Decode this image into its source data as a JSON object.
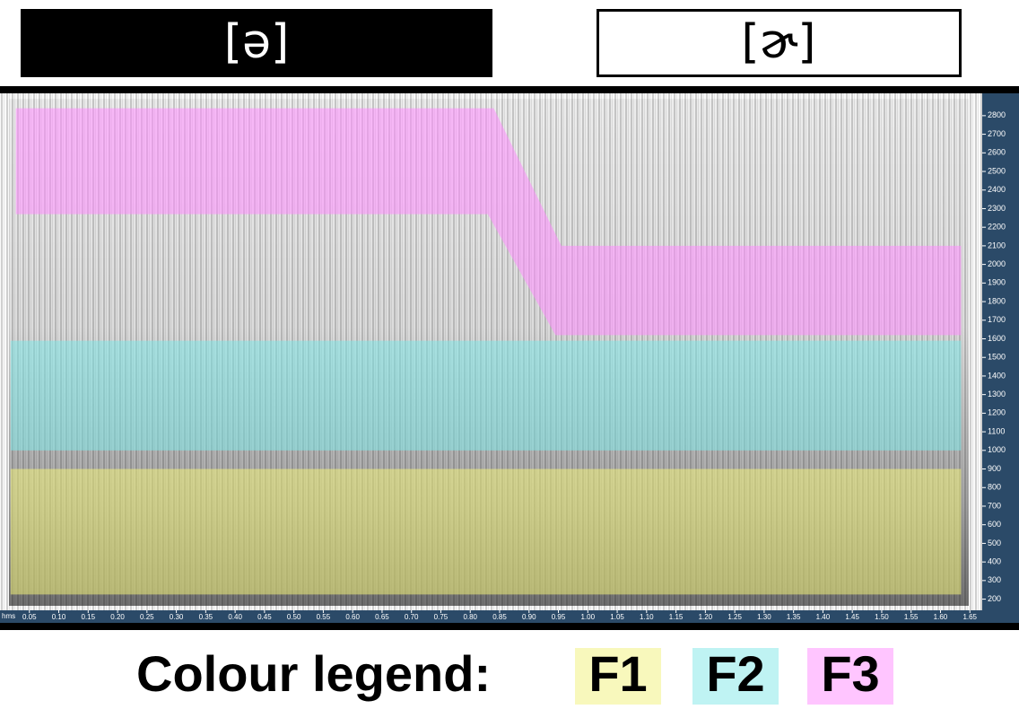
{
  "chart_data": {
    "type": "spectrogram",
    "segments": [
      "[ə]",
      "[ɚ]"
    ],
    "legend_title": "Colour legend:",
    "x_unit": "hms",
    "xlim": [
      0,
      1.671
    ],
    "ylim": [
      140,
      2920
    ],
    "yticks": [
      200,
      300,
      400,
      500,
      600,
      700,
      800,
      900,
      1000,
      1100,
      1200,
      1300,
      1400,
      1500,
      1600,
      1700,
      1800,
      1900,
      2000,
      2100,
      2200,
      2300,
      2400,
      2500,
      2600,
      2700,
      2800
    ],
    "xticks": [
      {
        "value": 0.05,
        "label": "0.05"
      },
      {
        "value": 0.1,
        "label": "0.10"
      },
      0.15,
      {
        "value": 0.2,
        "label": "0.20"
      },
      0.25,
      {
        "value": 0.3,
        "label": "0.30"
      },
      0.35,
      {
        "value": 0.4,
        "label": "0.40"
      },
      0.45,
      {
        "value": 0.5,
        "label": "0.50"
      },
      0.55,
      {
        "value": 0.6,
        "label": "0.60"
      },
      0.65,
      {
        "value": 0.7,
        "label": "0.70"
      },
      0.75,
      {
        "value": 0.8,
        "label": "0.80"
      },
      0.85,
      {
        "value": 0.9,
        "label": "0.90"
      },
      0.95,
      {
        "value": 1,
        "label": "1.00"
      },
      1.05,
      {
        "value": 1.1,
        "label": "1.10"
      },
      1.15,
      {
        "value": 1.2,
        "label": "1.20"
      },
      1.25,
      {
        "value": 1.3,
        "label": "1.30"
      },
      1.35,
      {
        "value": 1.4,
        "label": "1.40"
      },
      1.45,
      {
        "value": 1.5,
        "label": "1.50"
      },
      1.55,
      {
        "value": 1.6,
        "label": "1.60"
      },
      1.65
    ],
    "series": [
      {
        "name": "F1",
        "color": "#f2f27a",
        "x": [
          0.018,
          1.635
        ],
        "upper": [
          900,
          900
        ],
        "lower": [
          225,
          225
        ]
      },
      {
        "name": "F2",
        "color": "#7fe8e8",
        "x": [
          0.018,
          1.635
        ],
        "upper": [
          1590,
          1590
        ],
        "lower": [
          1000,
          1000
        ]
      },
      {
        "name": "F3",
        "color": "#ff8cff",
        "x": [
          0.027,
          0.83,
          0.84,
          0.945,
          0.955,
          1.635
        ],
        "upper": [
          2840,
          2840,
          2840,
          2164,
          2100,
          2100
        ],
        "lower": [
          2270,
          2270,
          2213,
          1620,
          1620,
          1620
        ]
      }
    ]
  }
}
